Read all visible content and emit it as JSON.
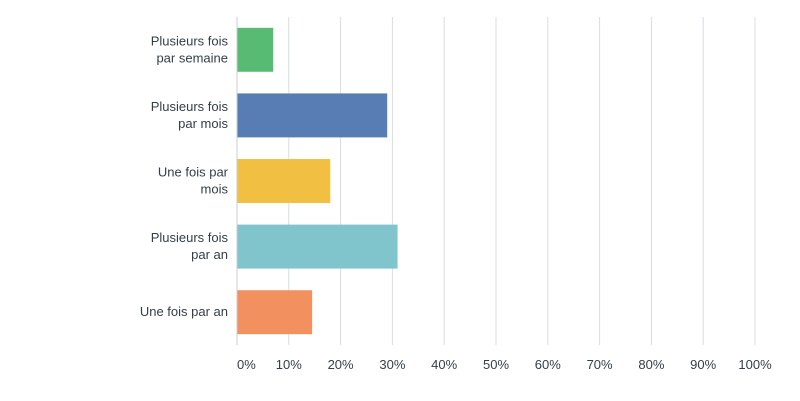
{
  "chart_data": {
    "type": "bar",
    "orientation": "horizontal",
    "categories": [
      [
        "Plusieurs fois",
        "par semaine"
      ],
      [
        "Plusieurs fois",
        "par mois"
      ],
      [
        "Une fois par",
        "mois"
      ],
      [
        "Plusieurs fois",
        "par an"
      ],
      [
        "Une fois par an"
      ]
    ],
    "values": [
      7,
      29,
      18,
      31,
      14.5
    ],
    "colors": [
      "#57bb74",
      "#587db5",
      "#f1bf42",
      "#7fc5cb",
      "#f2915f"
    ],
    "xticks": [
      "0%",
      "10%",
      "20%",
      "30%",
      "40%",
      "50%",
      "60%",
      "70%",
      "80%",
      "90%",
      "100%"
    ],
    "xlim": [
      0,
      100
    ],
    "grid": true,
    "title": "",
    "xlabel": "",
    "ylabel": ""
  }
}
